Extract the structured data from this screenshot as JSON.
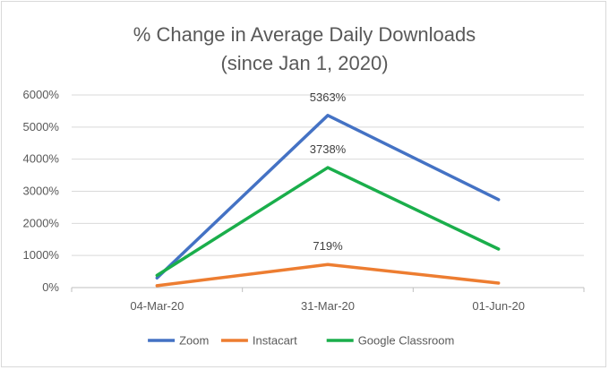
{
  "chart_data": {
    "type": "line",
    "title": "% Change in Average Daily Downloads",
    "subtitle": "(since Jan 1, 2020)",
    "xlabel": "",
    "ylabel": "",
    "categories": [
      "04-Mar-20",
      "31-Mar-20",
      "01-Jun-20"
    ],
    "ylim": [
      0,
      6000
    ],
    "yticks": [
      0,
      1000,
      2000,
      3000,
      4000,
      5000,
      6000
    ],
    "ytick_labels": [
      "0%",
      "1000%",
      "2000%",
      "3000%",
      "4000%",
      "5000%",
      "6000%"
    ],
    "grid": "horizontal",
    "legend_position": "bottom",
    "series": [
      {
        "name": "Zoom",
        "color": "#4472c4",
        "values": [
          300,
          5363,
          2740
        ]
      },
      {
        "name": "Instacart",
        "color": "#ed7d31",
        "values": [
          60,
          719,
          140
        ]
      },
      {
        "name": "Google Classroom",
        "color": "#1aae4b",
        "values": [
          380,
          3738,
          1200
        ]
      }
    ],
    "data_labels": [
      {
        "series": 0,
        "point": 1,
        "text": "5363%"
      },
      {
        "series": 2,
        "point": 1,
        "text": "3738%"
      },
      {
        "series": 1,
        "point": 1,
        "text": "719%"
      }
    ]
  }
}
